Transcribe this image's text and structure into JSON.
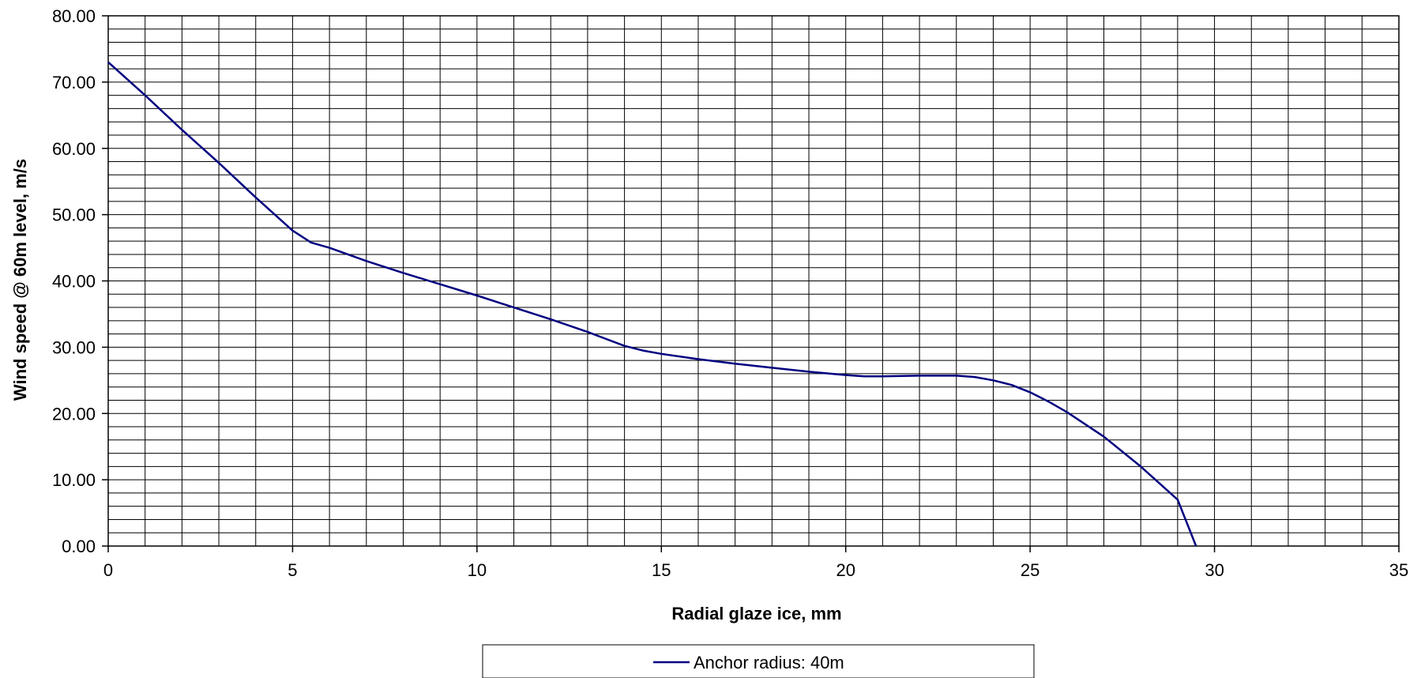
{
  "chart_data": {
    "type": "line",
    "xlabel": "Radial glaze ice, mm",
    "ylabel": "Wind speed @ 60m level, m/s",
    "xlim": [
      0,
      35
    ],
    "ylim": [
      0,
      80
    ],
    "x_ticks": [
      "0",
      "5",
      "10",
      "15",
      "20",
      "25",
      "30",
      "35"
    ],
    "x_tick_values": [
      0,
      5,
      10,
      15,
      20,
      25,
      30,
      35
    ],
    "y_ticks": [
      "0.00",
      "10.00",
      "20.00",
      "30.00",
      "40.00",
      "50.00",
      "60.00",
      "70.00",
      "80.00"
    ],
    "y_tick_values": [
      0,
      10,
      20,
      30,
      40,
      50,
      60,
      70,
      80
    ],
    "x_minor_step": 1,
    "y_minor_step": 2,
    "grid": true,
    "legend_position": "bottom-center",
    "series": [
      {
        "name": "Anchor radius: 40m",
        "color": "#000080",
        "x": [
          0,
          1,
          2,
          3,
          4,
          5,
          5.5,
          6,
          7,
          8,
          9,
          10,
          11,
          12,
          13,
          14,
          14.5,
          15,
          16,
          17,
          18,
          19,
          20,
          20.5,
          21,
          22,
          23,
          23.5,
          24,
          24.5,
          25,
          25.5,
          26,
          27,
          28,
          29,
          29.5
        ],
        "y": [
          73.0,
          68.0,
          62.8,
          57.8,
          52.6,
          47.6,
          45.8,
          45.0,
          43.0,
          41.2,
          39.5,
          37.8,
          36.0,
          34.2,
          32.3,
          30.2,
          29.5,
          29.0,
          28.2,
          27.5,
          26.9,
          26.3,
          25.8,
          25.6,
          25.6,
          25.7,
          25.7,
          25.5,
          25.0,
          24.3,
          23.2,
          21.8,
          20.2,
          16.5,
          12.0,
          7.0,
          0.0
        ]
      }
    ]
  }
}
